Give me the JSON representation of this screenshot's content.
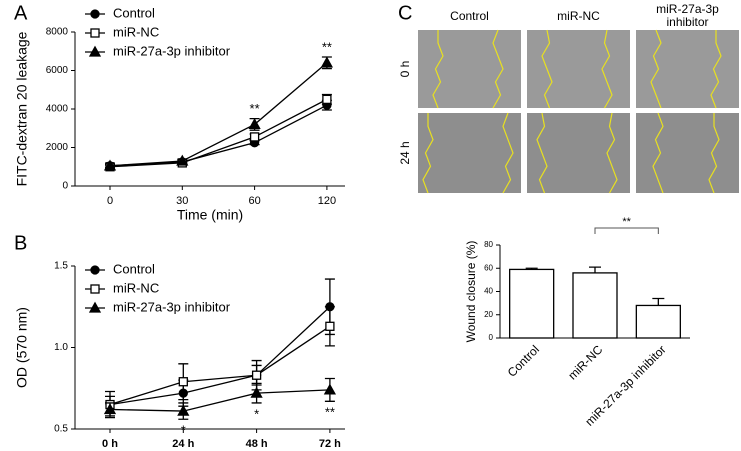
{
  "panel_labels": [
    "A",
    "B",
    "C"
  ],
  "wound_images": {
    "columns": [
      "Control",
      "miR-NC",
      "miR-27a-3p inhibitor"
    ],
    "rows": [
      "0 h",
      "24 h"
    ]
  },
  "chart_data": [
    {
      "type": "line",
      "ylabel": "FITC-dextran 20 leakage",
      "xlabel": "Time (min)",
      "categories": [
        "0",
        "30",
        "60",
        "120"
      ],
      "ylim": [
        0,
        8000
      ],
      "yticks": [
        0,
        2000,
        4000,
        6000,
        8000
      ],
      "series": [
        {
          "name": "Control",
          "marker": "circle",
          "color": "#000000",
          "values": [
            1050,
            1250,
            2250,
            4200
          ],
          "errors": [
            100,
            80,
            100,
            250
          ]
        },
        {
          "name": "miR-NC",
          "marker": "square",
          "color": "#000000",
          "values": [
            1000,
            1200,
            2550,
            4500
          ],
          "errors": [
            100,
            80,
            150,
            250
          ]
        },
        {
          "name": "miR-27a-3p inhibitor",
          "marker": "triangle",
          "color": "#000000",
          "values": [
            1050,
            1300,
            3200,
            6400
          ],
          "errors": [
            100,
            80,
            300,
            300
          ]
        }
      ],
      "annotation_position": "above",
      "annotations": [
        {
          "text": "**",
          "category": "60"
        },
        {
          "text": "**",
          "category": "120"
        }
      ]
    },
    {
      "type": "line",
      "ylabel": "OD (570 nm)",
      "categories": [
        "0 h",
        "24 h",
        "48 h",
        "72 h"
      ],
      "ylim": [
        0.5,
        1.5
      ],
      "yticks": [
        0.5,
        {
          "value": 1,
          "label": "1.0"
        },
        1.5
      ],
      "series": [
        {
          "name": "Control",
          "marker": "circle",
          "color": "#000000",
          "values": [
            0.65,
            0.72,
            0.83,
            1.25
          ],
          "errors": [
            0.08,
            0.08,
            0.06,
            0.17
          ]
        },
        {
          "name": "miR-NC",
          "marker": "square",
          "color": "#000000",
          "values": [
            0.65,
            0.79,
            0.83,
            1.13
          ],
          "errors": [
            0.05,
            0.11,
            0.09,
            0.12
          ]
        },
        {
          "name": "miR-27a-3p inhibitor",
          "marker": "triangle",
          "color": "#000000",
          "values": [
            0.62,
            0.61,
            0.72,
            0.74
          ],
          "errors": [
            0.04,
            0.05,
            0.06,
            0.07
          ]
        }
      ],
      "annotation_position": "below",
      "annotations": [
        {
          "text": "*",
          "category": "24 h"
        },
        {
          "text": "*",
          "category": "48 h"
        },
        {
          "text": "**",
          "category": "72 h"
        }
      ]
    },
    {
      "type": "bar",
      "ylabel": "Wound closure (%)",
      "categories": [
        "Control",
        "miR-NC",
        "miR-27a-3p inhibitor"
      ],
      "values": [
        59,
        56,
        28
      ],
      "errors": [
        1,
        5,
        6
      ],
      "color": "#ffffff",
      "ylim": [
        0,
        80
      ],
      "yticks": [
        0,
        20,
        40,
        60,
        80
      ],
      "significance": {
        "text": "**",
        "between": [
          "miR-NC",
          "miR-27a-3p inhibitor"
        ]
      }
    }
  ]
}
